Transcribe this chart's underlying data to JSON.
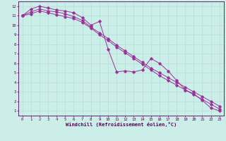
{
  "xlabel": "Windchill (Refroidissement éolien,°C)",
  "bg_color": "#cceee8",
  "grid_color": "#b0ddd4",
  "line_color": "#993399",
  "xlim": [
    -0.5,
    23.5
  ],
  "ylim": [
    0.5,
    12.5
  ],
  "xticks": [
    0,
    1,
    2,
    3,
    4,
    5,
    6,
    7,
    8,
    9,
    10,
    11,
    12,
    13,
    14,
    15,
    16,
    17,
    18,
    19,
    20,
    21,
    22,
    23
  ],
  "yticks": [
    1,
    2,
    3,
    4,
    5,
    6,
    7,
    8,
    9,
    10,
    11,
    12
  ],
  "line1_x": [
    0,
    1,
    2,
    3,
    4,
    5,
    6,
    7,
    8,
    9,
    10,
    11,
    12,
    13,
    14,
    15,
    16,
    17,
    18,
    19,
    20,
    21,
    22,
    23
  ],
  "line1_y": [
    11.0,
    11.7,
    12.0,
    11.8,
    11.6,
    11.5,
    11.3,
    10.8,
    10.0,
    10.4,
    7.5,
    5.1,
    5.2,
    5.1,
    5.3,
    6.5,
    6.0,
    5.2,
    4.2,
    3.2,
    2.8,
    2.1,
    1.3,
    1.0
  ],
  "line2_x": [
    0,
    1,
    2,
    3,
    4,
    5,
    6,
    7,
    8,
    9,
    10,
    11,
    12,
    13,
    14,
    15,
    16,
    17,
    18,
    19,
    20,
    21,
    22,
    23
  ],
  "line2_y": [
    11.0,
    11.4,
    11.7,
    11.5,
    11.4,
    11.2,
    10.9,
    10.5,
    9.8,
    9.2,
    8.6,
    7.9,
    7.3,
    6.7,
    6.1,
    5.5,
    5.0,
    4.5,
    4.0,
    3.5,
    3.0,
    2.5,
    2.0,
    1.5
  ],
  "line3_x": [
    0,
    1,
    2,
    3,
    4,
    5,
    6,
    7,
    8,
    9,
    10,
    11,
    12,
    13,
    14,
    15,
    16,
    17,
    18,
    19,
    20,
    21,
    22,
    23
  ],
  "line3_y": [
    11.0,
    11.2,
    11.5,
    11.3,
    11.1,
    10.9,
    10.7,
    10.3,
    9.7,
    9.0,
    8.4,
    7.7,
    7.1,
    6.5,
    5.9,
    5.3,
    4.7,
    4.2,
    3.7,
    3.2,
    2.7,
    2.2,
    1.7,
    1.2
  ]
}
